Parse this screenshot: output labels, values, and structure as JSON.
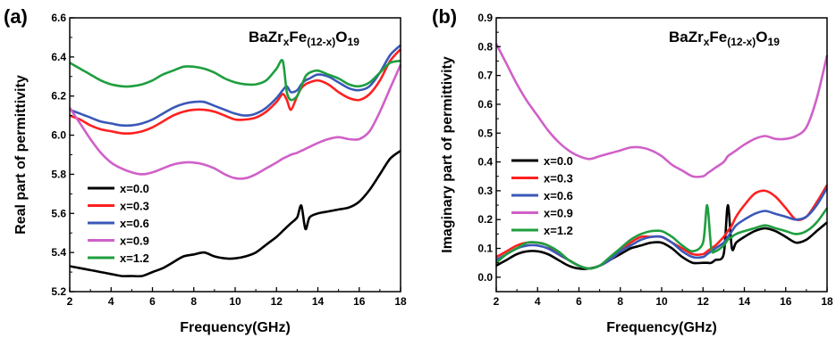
{
  "chart_data": [
    {
      "type": "line",
      "panel_label": "(a)",
      "annotation": {
        "main": "BaZr",
        "x_sub": "x",
        "mid": "Fe",
        "fe_sub": "(12-x)",
        "o": "O",
        "o_sub": "19"
      },
      "xlabel": "Frequency(GHz)",
      "ylabel": "Real part of permittivity",
      "xlim": [
        2,
        18
      ],
      "ylim": [
        5.2,
        6.6
      ],
      "xticks": [
        "2",
        "4",
        "6",
        "8",
        "10",
        "12",
        "14",
        "16",
        "18"
      ],
      "yticks": [
        "5.2",
        "5.4",
        "5.6",
        "5.8",
        "6.0",
        "6.2",
        "6.4",
        "6.6"
      ],
      "legend_position": "bottom-left",
      "grid": false,
      "x": [
        2,
        2.5,
        3,
        3.5,
        4,
        4.5,
        5,
        5.5,
        6,
        6.5,
        7,
        7.5,
        8,
        8.5,
        9,
        9.5,
        10,
        10.5,
        11,
        11.5,
        12,
        12.3,
        12.5,
        12.7,
        13,
        13.2,
        13.4,
        13.6,
        14,
        14.5,
        15,
        15.5,
        16,
        16.5,
        17,
        17.5,
        18
      ],
      "series": [
        {
          "name": "x=0.0",
          "color": "#000000",
          "values": [
            5.33,
            5.32,
            5.31,
            5.3,
            5.29,
            5.28,
            5.28,
            5.28,
            5.3,
            5.32,
            5.35,
            5.38,
            5.39,
            5.4,
            5.38,
            5.37,
            5.37,
            5.38,
            5.4,
            5.44,
            5.48,
            5.51,
            5.53,
            5.55,
            5.58,
            5.64,
            5.52,
            5.58,
            5.6,
            5.61,
            5.62,
            5.63,
            5.66,
            5.72,
            5.8,
            5.88,
            5.92
          ]
        },
        {
          "name": "x=0.3",
          "color": "#ff2020",
          "values": [
            6.1,
            6.08,
            6.05,
            6.03,
            6.02,
            6.01,
            6.01,
            6.02,
            6.04,
            6.07,
            6.1,
            6.12,
            6.13,
            6.13,
            6.12,
            6.1,
            6.08,
            6.08,
            6.09,
            6.12,
            6.17,
            6.21,
            6.18,
            6.13,
            6.2,
            6.24,
            6.26,
            6.27,
            6.28,
            6.26,
            6.22,
            6.19,
            6.18,
            6.21,
            6.28,
            6.38,
            6.44
          ]
        },
        {
          "name": "x=0.6",
          "color": "#3a58b8",
          "values": [
            6.13,
            6.11,
            6.09,
            6.07,
            6.06,
            6.05,
            6.05,
            6.06,
            6.08,
            6.11,
            6.14,
            6.16,
            6.17,
            6.17,
            6.15,
            6.13,
            6.11,
            6.1,
            6.11,
            6.14,
            6.19,
            6.23,
            6.25,
            6.22,
            6.23,
            6.26,
            6.28,
            6.29,
            6.31,
            6.3,
            6.27,
            6.24,
            6.23,
            6.25,
            6.32,
            6.41,
            6.46
          ]
        },
        {
          "name": "x=0.9",
          "color": "#d060c8",
          "values": [
            6.14,
            6.06,
            5.98,
            5.91,
            5.86,
            5.83,
            5.81,
            5.8,
            5.81,
            5.83,
            5.85,
            5.86,
            5.86,
            5.85,
            5.83,
            5.8,
            5.78,
            5.78,
            5.8,
            5.83,
            5.86,
            5.88,
            5.89,
            5.9,
            5.91,
            5.92,
            5.93,
            5.94,
            5.96,
            5.98,
            5.99,
            5.98,
            5.98,
            6.02,
            6.12,
            6.24,
            6.36
          ]
        },
        {
          "name": "x=1.2",
          "color": "#1e9e3e",
          "values": [
            6.37,
            6.34,
            6.31,
            6.28,
            6.26,
            6.25,
            6.25,
            6.26,
            6.28,
            6.31,
            6.33,
            6.35,
            6.35,
            6.34,
            6.32,
            6.29,
            6.27,
            6.26,
            6.26,
            6.28,
            6.34,
            6.38,
            6.22,
            6.18,
            6.2,
            6.25,
            6.3,
            6.32,
            6.33,
            6.31,
            6.29,
            6.26,
            6.25,
            6.27,
            6.32,
            6.37,
            6.38
          ]
        }
      ]
    },
    {
      "type": "line",
      "panel_label": "(b)",
      "annotation": {
        "main": "BaZr",
        "x_sub": "x",
        "mid": "Fe",
        "fe_sub": "(12-x)",
        "o": "O",
        "o_sub": "19"
      },
      "xlabel": "Frequency(GHz)",
      "ylabel": "Imaginary part of permittivity",
      "xlim": [
        2,
        18
      ],
      "ylim": [
        -0.05,
        0.9
      ],
      "xticks": [
        "2",
        "4",
        "6",
        "8",
        "10",
        "12",
        "14",
        "16",
        "18"
      ],
      "yticks": [
        "0.0",
        "0.1",
        "0.2",
        "0.3",
        "0.4",
        "0.5",
        "0.6",
        "0.7",
        "0.8",
        "0.9"
      ],
      "legend_position": "bottom-left",
      "grid": false,
      "x": [
        2,
        2.5,
        3,
        3.5,
        4,
        4.5,
        5,
        5.5,
        6,
        6.5,
        7,
        7.5,
        8,
        8.5,
        9,
        9.5,
        10,
        10.5,
        11,
        11.5,
        12,
        12.2,
        12.4,
        12.6,
        13,
        13.2,
        13.4,
        13.6,
        14,
        14.5,
        15,
        15.5,
        16,
        16.5,
        17,
        17.5,
        18
      ],
      "series": [
        {
          "name": "x=0.0",
          "color": "#000000",
          "values": [
            0.04,
            0.06,
            0.08,
            0.09,
            0.09,
            0.08,
            0.06,
            0.04,
            0.03,
            0.03,
            0.04,
            0.06,
            0.08,
            0.1,
            0.11,
            0.12,
            0.12,
            0.1,
            0.07,
            0.05,
            0.05,
            0.05,
            0.05,
            0.06,
            0.08,
            0.25,
            0.1,
            0.12,
            0.14,
            0.16,
            0.17,
            0.16,
            0.14,
            0.12,
            0.13,
            0.16,
            0.19
          ]
        },
        {
          "name": "x=0.3",
          "color": "#ff2020",
          "values": [
            0.07,
            0.09,
            0.11,
            0.12,
            0.12,
            0.11,
            0.08,
            0.06,
            0.04,
            0.03,
            0.04,
            0.06,
            0.09,
            0.12,
            0.14,
            0.14,
            0.14,
            0.12,
            0.1,
            0.08,
            0.08,
            0.09,
            0.1,
            0.11,
            0.14,
            0.16,
            0.18,
            0.21,
            0.25,
            0.29,
            0.3,
            0.28,
            0.24,
            0.2,
            0.21,
            0.26,
            0.32
          ]
        },
        {
          "name": "x=0.6",
          "color": "#3a58b8",
          "values": [
            0.06,
            0.08,
            0.1,
            0.11,
            0.11,
            0.1,
            0.08,
            0.06,
            0.04,
            0.03,
            0.04,
            0.06,
            0.09,
            0.11,
            0.13,
            0.14,
            0.14,
            0.12,
            0.09,
            0.07,
            0.07,
            0.08,
            0.09,
            0.1,
            0.12,
            0.14,
            0.16,
            0.18,
            0.2,
            0.22,
            0.23,
            0.22,
            0.21,
            0.2,
            0.21,
            0.25,
            0.31
          ]
        },
        {
          "name": "x=0.9",
          "color": "#d060c8",
          "values": [
            0.81,
            0.74,
            0.67,
            0.61,
            0.56,
            0.51,
            0.47,
            0.44,
            0.42,
            0.41,
            0.42,
            0.43,
            0.44,
            0.45,
            0.45,
            0.44,
            0.42,
            0.39,
            0.37,
            0.35,
            0.35,
            0.36,
            0.37,
            0.38,
            0.4,
            0.42,
            0.43,
            0.44,
            0.46,
            0.48,
            0.49,
            0.48,
            0.48,
            0.49,
            0.52,
            0.62,
            0.77
          ]
        },
        {
          "name": "x=1.2",
          "color": "#1e9e3e",
          "values": [
            0.05,
            0.08,
            0.1,
            0.12,
            0.12,
            0.11,
            0.09,
            0.06,
            0.04,
            0.03,
            0.04,
            0.07,
            0.1,
            0.13,
            0.15,
            0.16,
            0.16,
            0.14,
            0.11,
            0.09,
            0.12,
            0.25,
            0.1,
            0.09,
            0.11,
            0.13,
            0.14,
            0.15,
            0.16,
            0.17,
            0.18,
            0.17,
            0.16,
            0.15,
            0.16,
            0.19,
            0.24
          ]
        }
      ]
    }
  ]
}
